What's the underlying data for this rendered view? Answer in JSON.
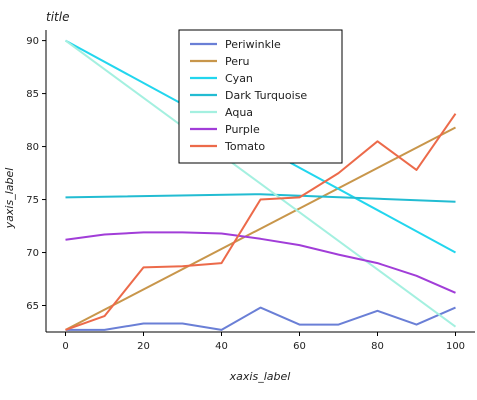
{
  "chart_data": {
    "type": "line",
    "title": "title",
    "xlabel": "xaxis_label",
    "ylabel": "yaxis_label",
    "xlim": [
      -5,
      105
    ],
    "ylim": [
      62.5,
      91
    ],
    "x_ticks": [
      0,
      20,
      40,
      60,
      80,
      100
    ],
    "y_ticks": [
      65,
      70,
      75,
      80,
      85,
      90
    ],
    "grid": false,
    "legend_position": "top-center",
    "series": [
      {
        "name": "Periwinkle",
        "color": "#6a7fd6",
        "x": [
          0,
          10,
          20,
          30,
          40,
          50,
          60,
          70,
          80,
          90,
          100
        ],
        "y": [
          62.7,
          62.7,
          63.3,
          63.3,
          62.7,
          64.8,
          63.2,
          63.2,
          64.5,
          63.2,
          64.8
        ]
      },
      {
        "name": "Peru",
        "color": "#c8964b",
        "x": [
          0,
          100
        ],
        "y": [
          62.7,
          81.8
        ]
      },
      {
        "name": "Cyan",
        "color": "#22d6ee",
        "x": [
          0,
          100
        ],
        "y": [
          90.0,
          70.0
        ]
      },
      {
        "name": "Dark Turquoise",
        "color": "#22bcd2",
        "x": [
          0,
          50,
          100
        ],
        "y": [
          75.2,
          75.5,
          74.8
        ]
      },
      {
        "name": "Aqua",
        "color": "#a4f0e0",
        "x": [
          0,
          100
        ],
        "y": [
          90.0,
          63.0
        ]
      },
      {
        "name": "Purple",
        "color": "#a13dd8",
        "x": [
          0,
          10,
          20,
          30,
          40,
          50,
          60,
          70,
          80,
          90,
          100
        ],
        "y": [
          71.2,
          71.7,
          71.9,
          71.9,
          71.8,
          71.3,
          70.7,
          69.8,
          69.0,
          67.8,
          66.2
        ]
      },
      {
        "name": "Tomato",
        "color": "#ec6a4a",
        "x": [
          0,
          10,
          20,
          30,
          40,
          50,
          60,
          70,
          80,
          90,
          100
        ],
        "y": [
          62.7,
          64.0,
          68.6,
          68.7,
          69.0,
          75.0,
          75.2,
          77.5,
          80.5,
          77.8,
          83.1
        ]
      }
    ]
  }
}
